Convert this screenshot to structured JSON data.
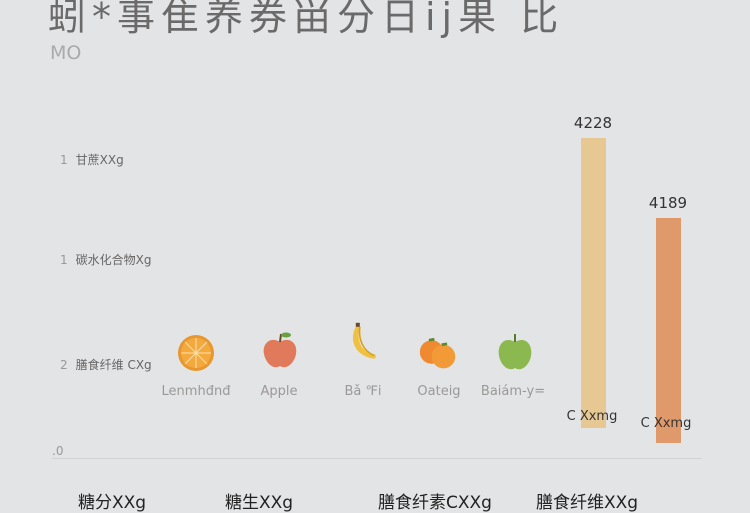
{
  "chart_data": {
    "type": "bar",
    "title": "蚓*事隹养券畄分日ij果 比",
    "subtitle": "MO",
    "y_ticks": [
      {
        "num": "1",
        "label": "甘蔗XXg"
      },
      {
        "num": "1",
        "label": "碳水化合物Xg"
      },
      {
        "num": "2",
        "label": "膳食纤维 CXg"
      },
      {
        "num": ".0",
        "label": ""
      }
    ],
    "fruits": [
      {
        "icon": "orange-slice-icon",
        "label": "Lenmhđnđ",
        "color": "#f0a23c"
      },
      {
        "icon": "apple-icon",
        "label": "Apple",
        "color": "#e07a5a"
      },
      {
        "icon": "banana-icon",
        "label": "Bǎ ℉i",
        "color": "#f0c040"
      },
      {
        "icon": "orange-icon",
        "label": "Oateig",
        "color": "#f08a30"
      },
      {
        "icon": "green-apple-icon",
        "label": "Baiám-y=",
        "color": "#8cb850"
      }
    ],
    "bars": [
      {
        "value": 4228,
        "value_label": "4228",
        "unit_label": "C Xxmg",
        "color": "#e8c892"
      },
      {
        "value": 4189,
        "value_label": "4189",
        "unit_label": "C Xxmg",
        "color": "#e0996a"
      }
    ],
    "x_labels": [
      "糖分XXg",
      "糖生XXg",
      "膳食纤素CXXg",
      "膳食纤维XXg"
    ],
    "grid": false
  }
}
